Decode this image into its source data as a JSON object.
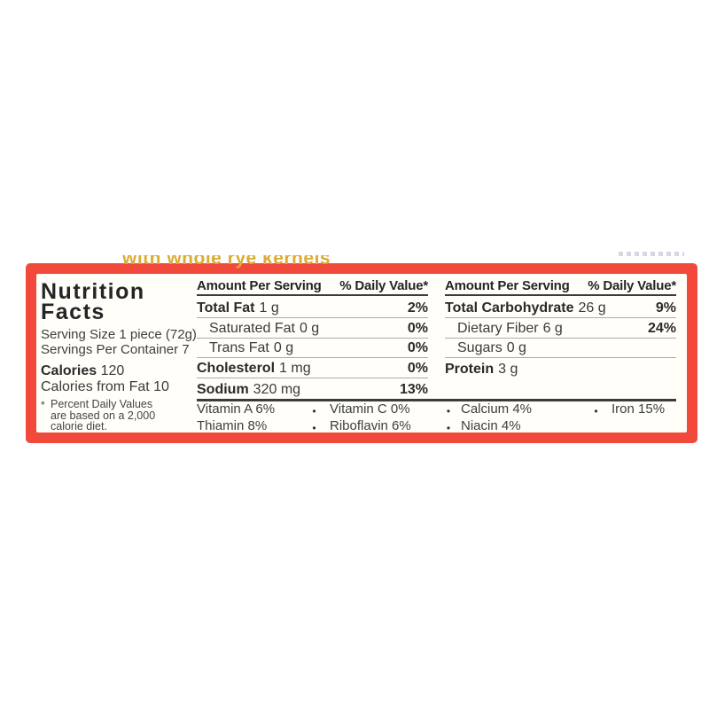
{
  "package": {
    "tagline": "with whole rye kernels"
  },
  "nutrition_label": {
    "title_line1": "Nutrition",
    "title_line2": "Facts",
    "serving_size": "Serving Size 1 piece (72g)",
    "servings_per_container": "Servings Per Container 7",
    "calories_label": "Calories",
    "calories_value": "120",
    "calories_from_fat": "Calories from Fat 10",
    "footnote_marker": "*",
    "footnote_lines": [
      "Percent Daily Values",
      "are based on a 2,000",
      "calorie diet."
    ],
    "columns": [
      {
        "header_amount": "Amount Per Serving",
        "header_dv": "% Daily Value*",
        "rows": [
          {
            "name": "Total Fat",
            "amount": "1 g",
            "dv": "2%"
          },
          {
            "name": "Saturated Fat",
            "amount": "0 g",
            "dv": "0%"
          },
          {
            "name": "Trans Fat",
            "amount": "0 g",
            "dv": "0%"
          },
          {
            "name": "Cholesterol",
            "amount": "1 mg",
            "dv": "0%"
          },
          {
            "name": "Sodium",
            "amount": "320 mg",
            "dv": "13%"
          }
        ]
      },
      {
        "header_amount": "Amount Per Serving",
        "header_dv": "% Daily Value*",
        "rows": [
          {
            "name": "Total Carbohydrate",
            "amount": "26 g",
            "dv": "9%"
          },
          {
            "name": "Dietary Fiber",
            "amount": "6 g",
            "dv": "24%"
          },
          {
            "name": "Sugars",
            "amount": "0 g",
            "dv": ""
          },
          {
            "name": "Protein",
            "amount": "3 g",
            "dv": ""
          }
        ]
      }
    ],
    "separator_bullet": "•",
    "micronutrients": {
      "row1": [
        "Vitamin A 6%",
        "Vitamin C 0%",
        "Calcium 4%",
        "Iron 15%"
      ],
      "row2": [
        "Thiamin 8%",
        "Riboflavin 6%",
        "Niacin 4%"
      ]
    }
  },
  "colors": {
    "border_red": "#f14a3c",
    "tagline_yellow": "#dcab33",
    "text_dark": "#3a3a3a"
  }
}
